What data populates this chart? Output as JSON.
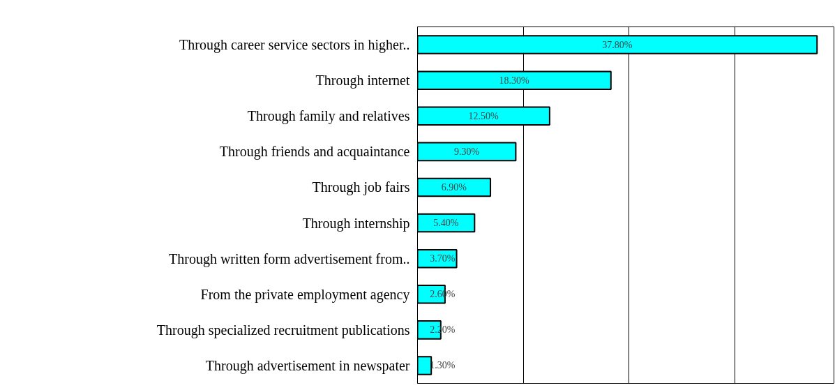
{
  "chart_data": {
    "type": "bar",
    "orientation": "horizontal",
    "categories": [
      "Through career service sectors in higher..",
      "Through internet",
      "Through family and relatives",
      "Through friends and acquaintance",
      "Through job fairs",
      "Through internship",
      "Through written form advertisement from..",
      "From the private employment agency",
      "Through specialized recruitment publications",
      "Through advertisement in newspater"
    ],
    "values": [
      37.8,
      18.3,
      12.5,
      9.3,
      6.9,
      5.4,
      3.7,
      2.6,
      2.2,
      1.3
    ],
    "value_labels": [
      "37.80%",
      "18.30%",
      "12.50%",
      "9.30%",
      "6.90%",
      "5.40%",
      "3.70%",
      "2.60%",
      "2.20%",
      "1.30%"
    ],
    "color": "#00ffff",
    "xlim": [
      0,
      39.4
    ],
    "xticks": [
      {
        "value": 0,
        "label": null
      },
      {
        "value": 10,
        "label": null
      },
      {
        "value": 20,
        "label": null
      },
      {
        "value": 30,
        "label": null
      }
    ],
    "grid": "x",
    "tick_labels": "y"
  }
}
